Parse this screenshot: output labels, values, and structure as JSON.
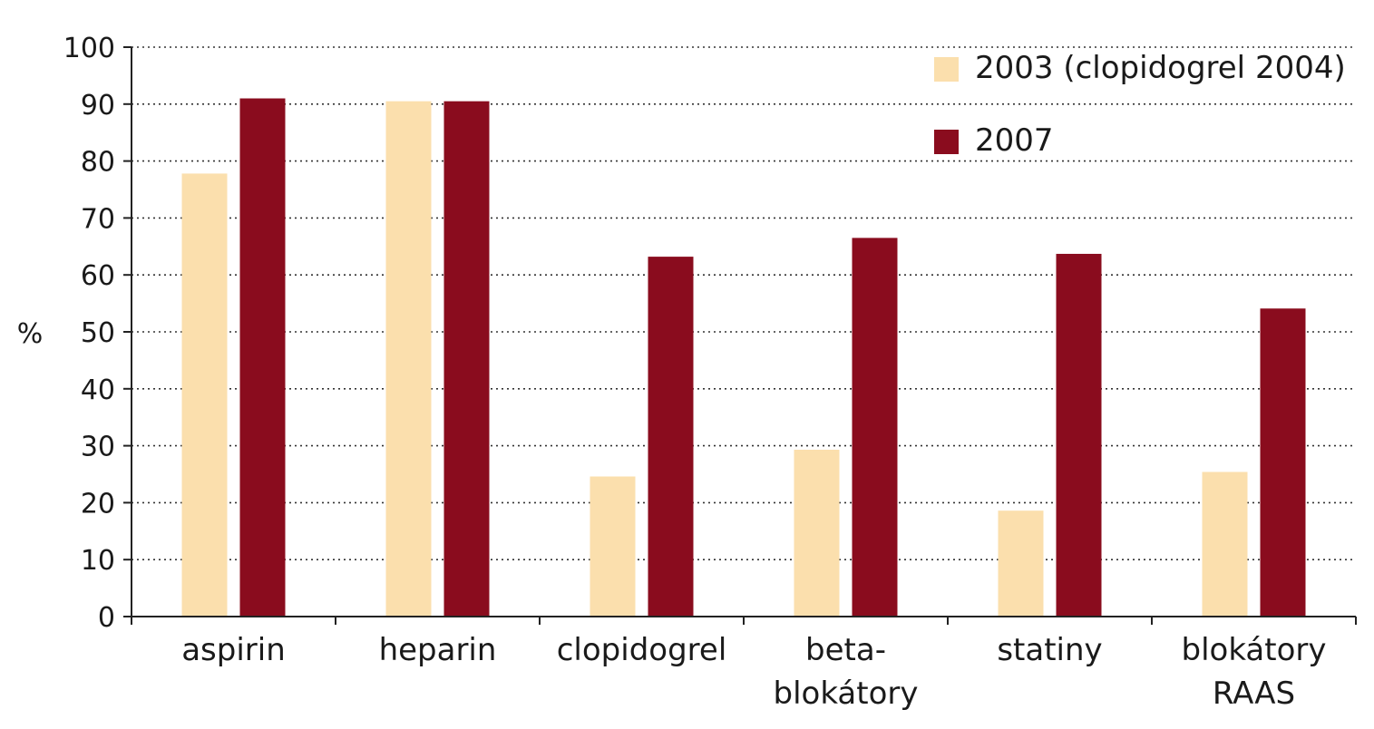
{
  "chart_data": {
    "type": "bar",
    "title": "",
    "xlabel": "",
    "ylabel": "%",
    "ylim": [
      0,
      100
    ],
    "yticks": [
      0,
      10,
      20,
      30,
      40,
      50,
      60,
      70,
      80,
      90,
      100
    ],
    "grid": "dotted horizontal",
    "legend_position": "top-right",
    "categories": [
      [
        "aspirin"
      ],
      [
        "heparin"
      ],
      [
        "clopidogrel"
      ],
      [
        "beta-",
        "blokátory"
      ],
      [
        "statiny"
      ],
      [
        "blokátory",
        "RAAS"
      ]
    ],
    "series": [
      {
        "name": "2003 (clopidogrel 2004)",
        "color": "#fbdfad",
        "values": [
          77.8,
          90.5,
          24.6,
          29.3,
          18.6,
          25.4
        ]
      },
      {
        "name": "2007",
        "color": "#8a0c1e",
        "values": [
          91.0,
          90.5,
          63.2,
          66.5,
          63.7,
          54.1
        ]
      }
    ]
  }
}
